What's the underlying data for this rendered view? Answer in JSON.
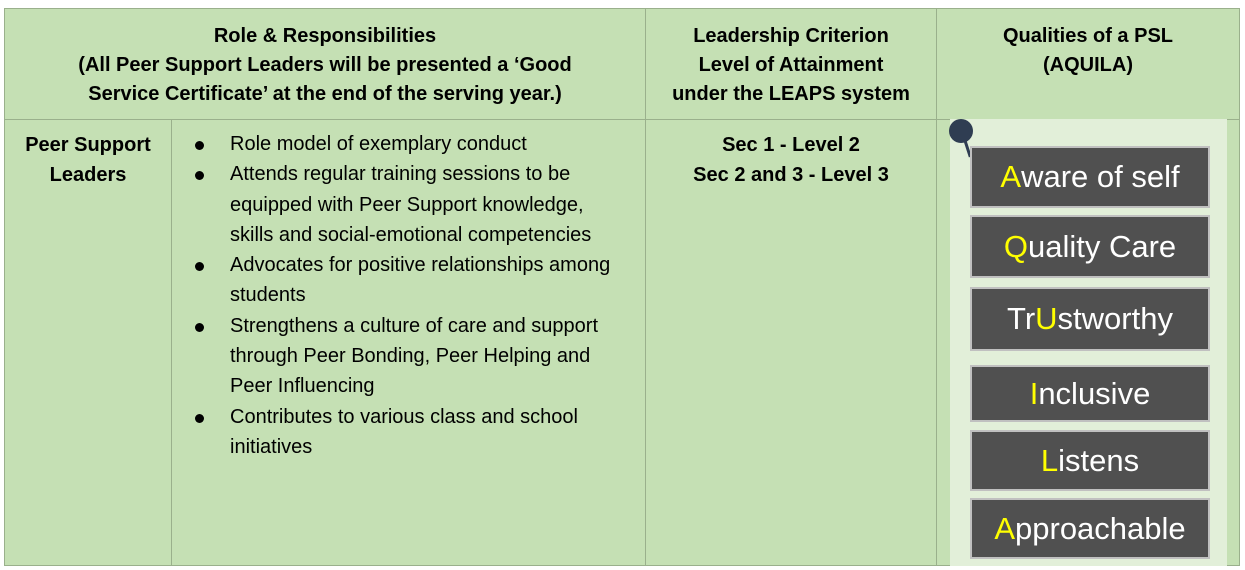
{
  "header": {
    "col1": {
      "line1": "Role & Responsibilities",
      "line2": "(All Peer Support Leaders will be presented a ‘Good",
      "line3": "Service Certificate’ at the end of the serving year.)"
    },
    "col2": {
      "line1": "Leadership Criterion",
      "line2": "Level of Attainment",
      "line3": "under the LEAPS system"
    },
    "col3": {
      "line1": "Qualities of a PSL",
      "line2": "(AQUILA)"
    }
  },
  "role": {
    "name_line1": "Peer Support",
    "name_line2": "Leaders"
  },
  "responsibilities": [
    "Role model of exemplary conduct",
    "Attends regular training sessions to be equipped with Peer Support knowledge, skills and social-emotional competencies",
    "Advocates for positive relationships among students",
    "Strengthens a culture of care and support through Peer Bonding, Peer Helping and Peer Influencing",
    "Contributes to various class and school initiatives"
  ],
  "criterion": {
    "line1": "Sec 1 - Level 2",
    "line2": "Sec 2 and 3 - Level 3"
  },
  "qualities": [
    {
      "pre": "",
      "hl": "A",
      "post": "ware of self"
    },
    {
      "pre": "",
      "hl": "Q",
      "post": "uality Care"
    },
    {
      "pre": "Tr",
      "hl": "U",
      "post": "stworthy"
    },
    {
      "pre": "",
      "hl": "I",
      "post": "nclusive"
    },
    {
      "pre": "",
      "hl": "L",
      "post": "istens"
    },
    {
      "pre": "",
      "hl": "A",
      "post": "pproachable"
    }
  ],
  "colors": {
    "cell_bg": "#c5e0b4",
    "panel_bg": "#e2efd9",
    "box_bg": "#505050",
    "highlight": "#ffff00"
  }
}
